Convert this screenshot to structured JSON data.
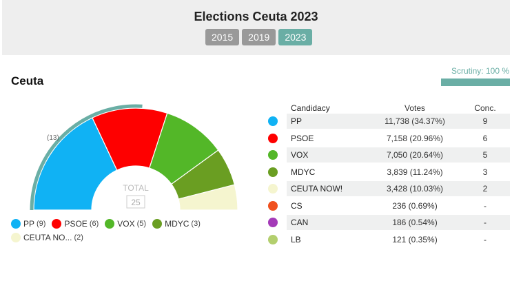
{
  "header": {
    "title": "Elections Ceuta 2023",
    "years": [
      {
        "label": "2015",
        "active": false
      },
      {
        "label": "2019",
        "active": false
      },
      {
        "label": "2023",
        "active": true
      }
    ]
  },
  "region": {
    "name": "Ceuta"
  },
  "scrutiny": {
    "label": "Scrutiny: 100 %",
    "progress_percent": 100
  },
  "hemicycle": {
    "total_label": "TOTAL",
    "total_seats": "25",
    "majority_note": "(13)",
    "seats": [
      {
        "party": "PP",
        "seats": 9,
        "color": "#10b2f4"
      },
      {
        "party": "PSOE",
        "seats": 6,
        "color": "#fe0000"
      },
      {
        "party": "VOX",
        "seats": 5,
        "color": "#53b728"
      },
      {
        "party": "MDYC",
        "seats": 3,
        "color": "#6a9e22"
      },
      {
        "party": "CEUTA NOW!",
        "seats": 2,
        "color": "#f5f5cf"
      }
    ]
  },
  "legend": [
    {
      "label": "PP",
      "count": "(9)",
      "color": "#10b2f4"
    },
    {
      "label": "PSOE",
      "count": "(6)",
      "color": "#fe0000"
    },
    {
      "label": "VOX",
      "count": "(5)",
      "color": "#53b728"
    },
    {
      "label": "MDYC",
      "count": "(3)",
      "color": "#6a9e22"
    },
    {
      "label": "CEUTA NO...",
      "count": "(2)",
      "color": "#f5f5cf"
    }
  ],
  "table": {
    "headers": {
      "candidacy": "Candidacy",
      "votes": "Votes",
      "conc": "Conc."
    },
    "rows": [
      {
        "name": "PP",
        "votes": "11,738 (34.37%)",
        "conc": "9",
        "color": "#10b2f4"
      },
      {
        "name": "PSOE",
        "votes": "7,158 (20.96%)",
        "conc": "6",
        "color": "#fe0000"
      },
      {
        "name": "VOX",
        "votes": "7,050 (20.64%)",
        "conc": "5",
        "color": "#53b728"
      },
      {
        "name": "MDYC",
        "votes": "3,839 (11.24%)",
        "conc": "3",
        "color": "#6a9e22"
      },
      {
        "name": "CEUTA NOW!",
        "votes": "3,428 (10.03%)",
        "conc": "2",
        "color": "#f5f5cf"
      },
      {
        "name": "CS",
        "votes": "236 (0.69%)",
        "conc": "-",
        "color": "#f0501e"
      },
      {
        "name": "CAN",
        "votes": "186 (0.54%)",
        "conc": "-",
        "color": "#a43ab8"
      },
      {
        "name": "LB",
        "votes": "121 (0.35%)",
        "conc": "-",
        "color": "#b3cf6e"
      }
    ]
  },
  "colors": {
    "accent": "#6aaea5",
    "inactive_year": "#999999",
    "header_bg": "#eeeeee"
  }
}
